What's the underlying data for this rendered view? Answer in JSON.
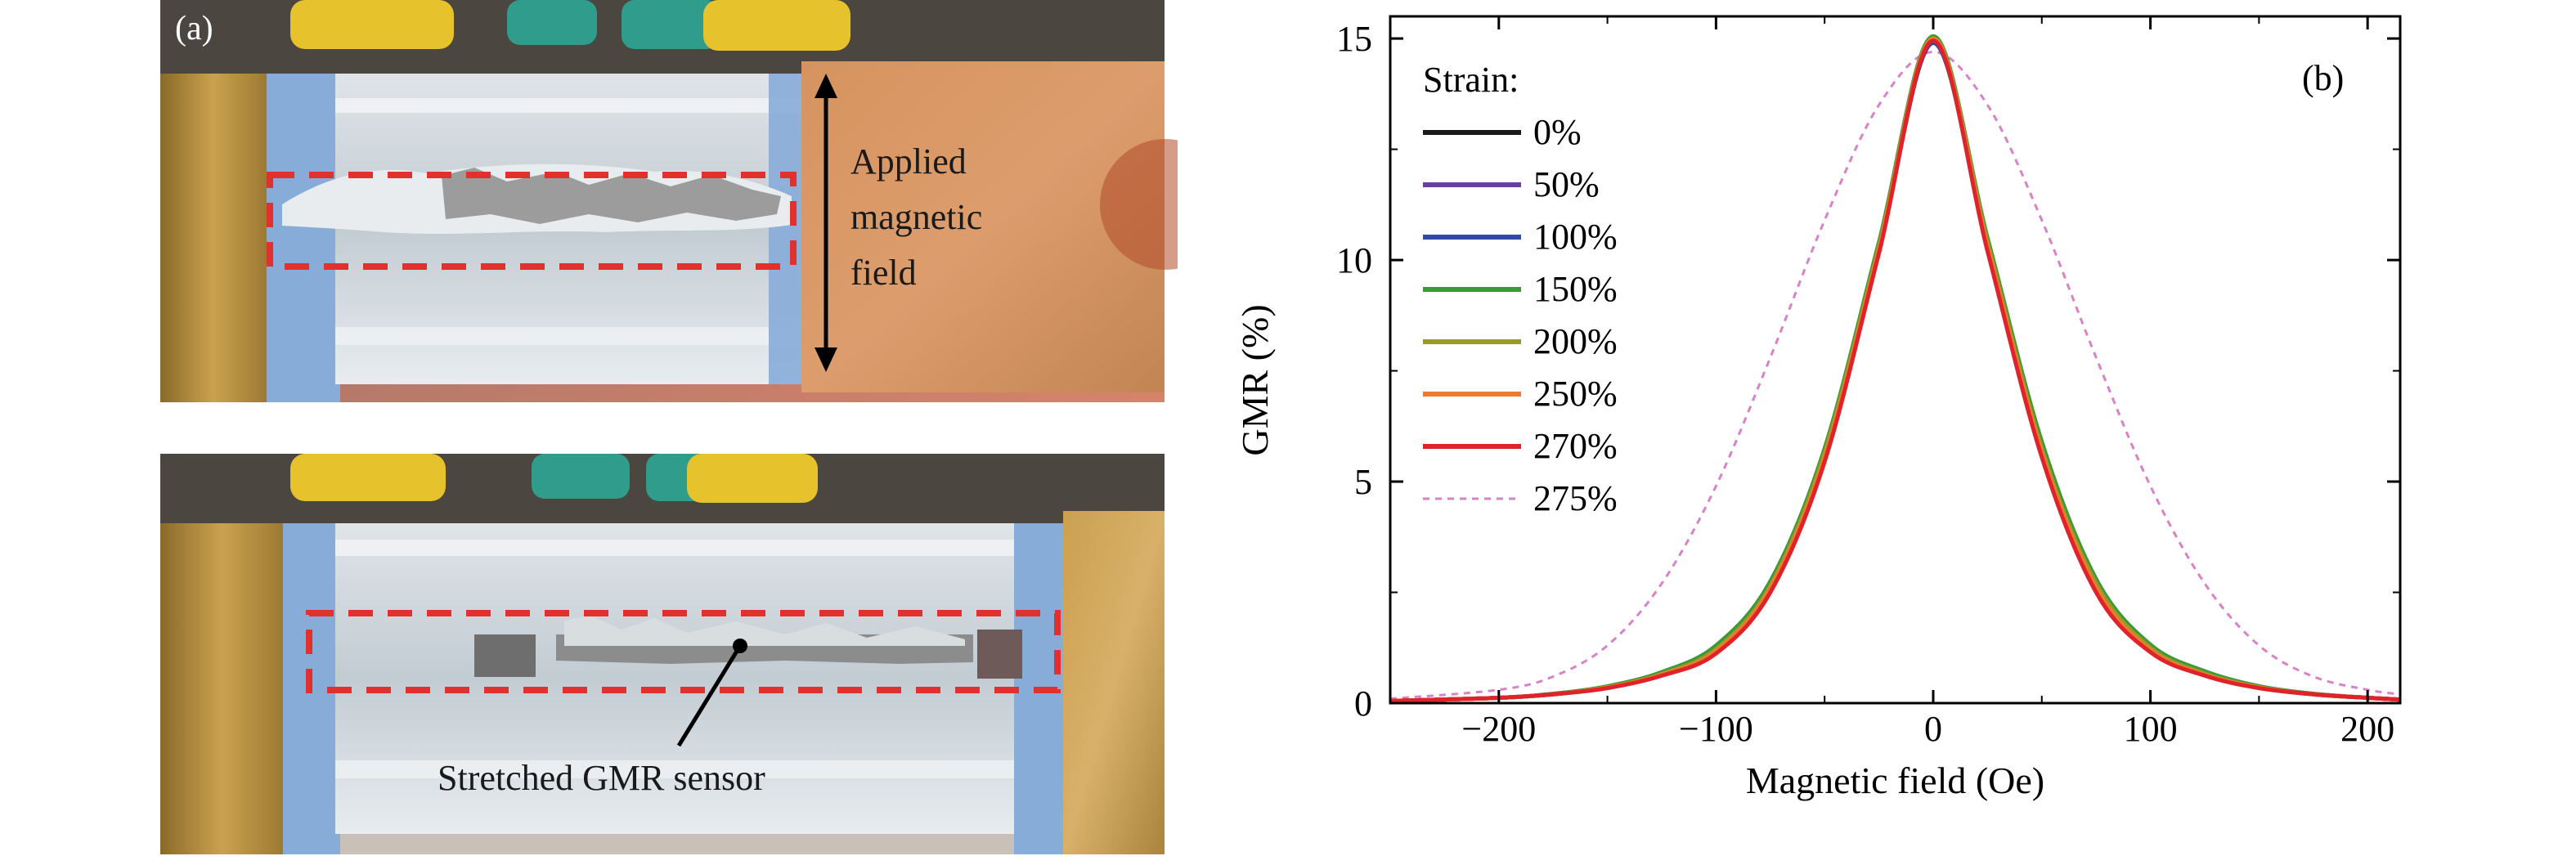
{
  "colors": {
    "background": "#ffffff",
    "frame_box": "#e0312f",
    "brass": "#b8963f",
    "acrylic": "#cdd7dd",
    "tape_blue": "#86aee0",
    "foil": "#8c8c8c"
  },
  "panel_a": {
    "label": "(a)",
    "arrow_label_lines": [
      "Applied",
      "magnetic",
      "field"
    ],
    "sensor_label": "Stretched GMR sensor"
  },
  "chart_data": {
    "type": "line",
    "panel_label": "(b)",
    "xlabel": "Magnetic field (Oe)",
    "ylabel": "GMR (%)",
    "xlim": [
      -250,
      215
    ],
    "ylim": [
      0,
      15.5
    ],
    "xticks": [
      -200,
      -100,
      0,
      100,
      200
    ],
    "xtick_labels": [
      "−200",
      "−100",
      "0",
      "100",
      "200"
    ],
    "yticks": [
      0,
      5,
      10,
      15
    ],
    "ytick_labels": [
      "0",
      "5",
      "10",
      "15"
    ],
    "legend_title": "Strain:",
    "legend_position": "top-left",
    "grid": false,
    "x": [
      -250,
      -200,
      -175,
      -150,
      -125,
      -100,
      -75,
      -50,
      -25,
      0,
      25,
      50,
      75,
      100,
      125,
      150,
      175,
      200,
      215
    ],
    "series": [
      {
        "name": "0%",
        "color": "#1a1a1a",
        "dash": false,
        "values": [
          0.05,
          0.12,
          0.2,
          0.35,
          0.65,
          1.2,
          2.6,
          5.6,
          10.2,
          14.9,
          10.3,
          5.7,
          2.6,
          1.2,
          0.65,
          0.35,
          0.2,
          0.12,
          0.08
        ]
      },
      {
        "name": "50%",
        "color": "#6a3fa0",
        "dash": false,
        "values": [
          0.05,
          0.12,
          0.2,
          0.36,
          0.66,
          1.22,
          2.65,
          5.65,
          10.3,
          14.95,
          10.35,
          5.75,
          2.65,
          1.22,
          0.66,
          0.36,
          0.2,
          0.12,
          0.08
        ]
      },
      {
        "name": "100%",
        "color": "#2f49a8",
        "dash": false,
        "values": [
          0.05,
          0.12,
          0.21,
          0.37,
          0.68,
          1.25,
          2.7,
          5.7,
          10.35,
          14.9,
          10.4,
          5.85,
          2.75,
          1.3,
          0.7,
          0.38,
          0.21,
          0.12,
          0.08
        ]
      },
      {
        "name": "150%",
        "color": "#3a9a35",
        "dash": false,
        "values": [
          0.05,
          0.12,
          0.21,
          0.38,
          0.7,
          1.3,
          2.75,
          5.75,
          10.4,
          15.05,
          10.5,
          5.9,
          2.8,
          1.32,
          0.72,
          0.38,
          0.21,
          0.12,
          0.08
        ]
      },
      {
        "name": "200%",
        "color": "#9a9a28",
        "dash": false,
        "values": [
          0.05,
          0.12,
          0.2,
          0.36,
          0.66,
          1.22,
          2.65,
          5.65,
          10.3,
          15.0,
          10.4,
          5.75,
          2.7,
          1.25,
          0.67,
          0.36,
          0.2,
          0.12,
          0.08
        ]
      },
      {
        "name": "250%",
        "color": "#ef7a2e",
        "dash": false,
        "values": [
          0.05,
          0.12,
          0.2,
          0.35,
          0.64,
          1.18,
          2.6,
          5.55,
          10.25,
          15.0,
          10.3,
          5.65,
          2.6,
          1.2,
          0.64,
          0.35,
          0.2,
          0.12,
          0.08
        ]
      },
      {
        "name": "270%",
        "color": "#e0232a",
        "dash": false,
        "values": [
          0.05,
          0.12,
          0.2,
          0.34,
          0.62,
          1.12,
          2.5,
          5.45,
          10.15,
          14.95,
          10.2,
          5.55,
          2.5,
          1.15,
          0.62,
          0.34,
          0.2,
          0.12,
          0.08
        ]
      },
      {
        "name": "275%",
        "color": "#d982c8",
        "dash": true,
        "values": [
          0.1,
          0.3,
          0.6,
          1.3,
          2.7,
          4.9,
          7.8,
          10.9,
          13.5,
          14.7,
          13.5,
          10.9,
          7.8,
          4.9,
          2.7,
          1.3,
          0.6,
          0.3,
          0.2
        ]
      }
    ]
  }
}
